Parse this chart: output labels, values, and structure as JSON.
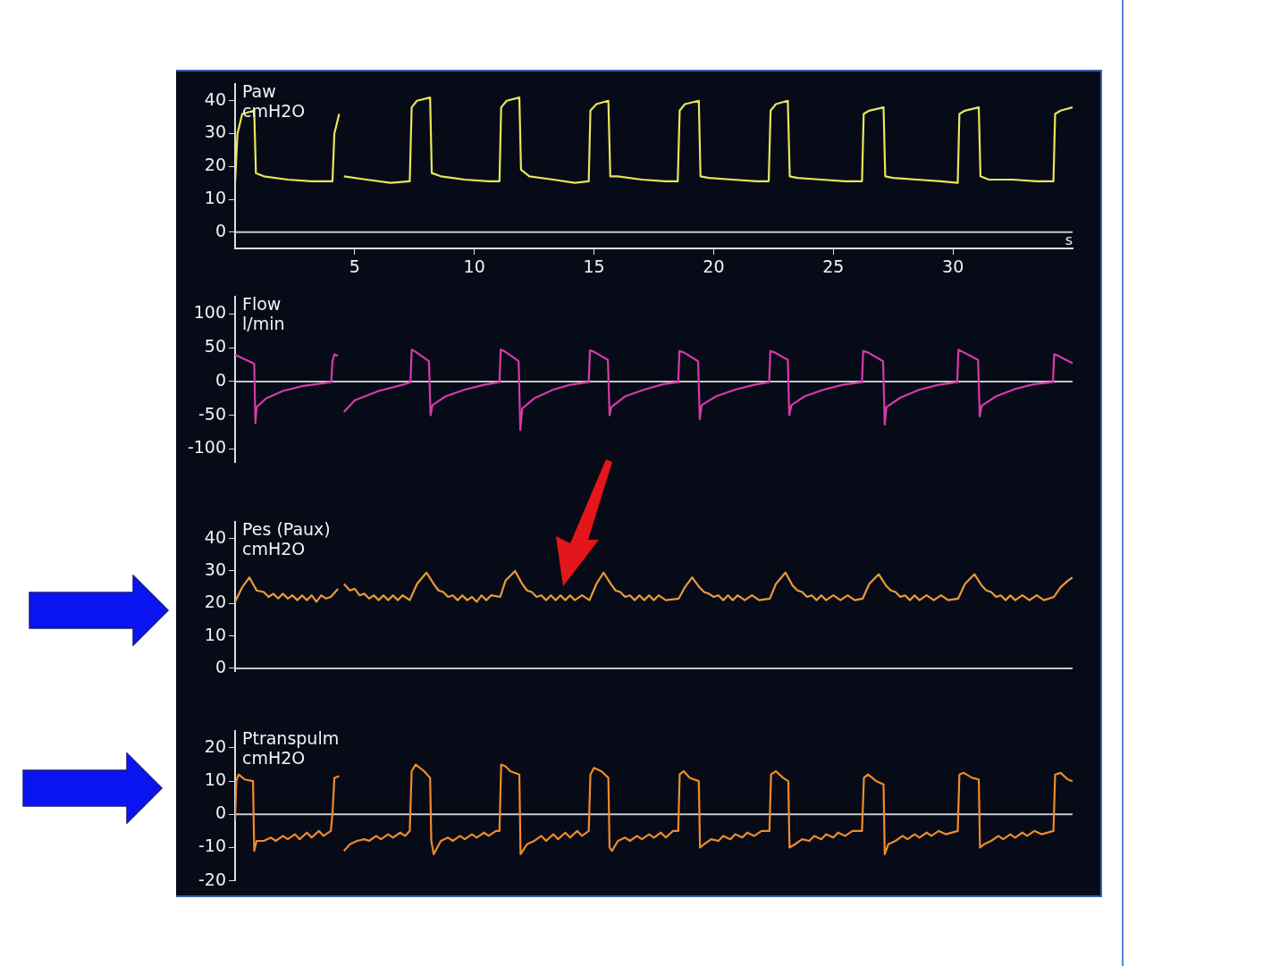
{
  "chart_data": [
    {
      "type": "line",
      "title": "Paw",
      "ylabel": "cmH2O",
      "xlabel": "s",
      "xlim": [
        0,
        35
      ],
      "xticks": [
        5,
        10,
        15,
        20,
        25,
        30
      ],
      "ylim": [
        -5,
        45
      ],
      "yticks": [
        0,
        10,
        20,
        30,
        40
      ],
      "ref_lines": [
        {
          "axis": "y",
          "value": 0,
          "color": "#c8c8c8"
        }
      ],
      "legend": false,
      "series": [
        {
          "color": "#e8e65a",
          "x": [
            0,
            0.1,
            0.3,
            0.8,
            0.87,
            1.2,
            2.2,
            3.2,
            4.0,
            4.07,
            4.15,
            4.35,
            4.45,
            4.55,
            5.5,
            6.5,
            7.3,
            7.38,
            7.6,
            8.15,
            8.22,
            8.6,
            9.6,
            10.6,
            11.05,
            11.12,
            11.35,
            11.88,
            11.95,
            12.3,
            13.3,
            14.2,
            14.78,
            14.85,
            15.1,
            15.6,
            15.68,
            16.0,
            17.0,
            18.0,
            18.5,
            18.58,
            18.8,
            19.38,
            19.45,
            19.8,
            20.8,
            21.8,
            22.3,
            22.38,
            22.6,
            23.1,
            23.18,
            23.5,
            24.5,
            25.5,
            26.2,
            26.27,
            26.5,
            27.1,
            27.17,
            27.5,
            28.5,
            29.5,
            30.2,
            30.27,
            30.5,
            31.08,
            31.15,
            31.5,
            32.5,
            33.5,
            34.2,
            34.27,
            34.5,
            35
          ],
          "values": [
            15,
            30,
            36,
            37,
            18,
            17,
            16,
            15.5,
            15.5,
            15.5,
            30,
            36,
            null,
            17,
            16,
            15,
            15.5,
            38,
            40,
            41,
            18,
            17,
            16,
            15.5,
            15.5,
            38,
            40,
            41,
            19,
            17,
            16,
            15,
            15.5,
            37,
            39,
            40,
            17,
            17,
            16,
            15.5,
            15.5,
            37,
            39,
            40,
            17,
            16.5,
            16,
            15.5,
            15.5,
            37,
            39,
            40,
            17,
            16.5,
            16,
            15.5,
            15.5,
            36,
            37,
            38,
            17,
            16.5,
            16,
            15.5,
            15,
            36,
            37,
            38,
            17,
            16,
            16,
            15.5,
            15.5,
            36,
            37,
            38
          ]
        }
      ]
    },
    {
      "type": "line",
      "title": "Flow",
      "ylabel": "l/min",
      "xlim": [
        0,
        35
      ],
      "xticks": [
        5,
        10,
        15,
        20,
        25,
        30
      ],
      "ylim": [
        -120,
        125
      ],
      "yticks": [
        -100,
        -50,
        0,
        50,
        100
      ],
      "tick_labels": "y",
      "ref_lines": [
        {
          "axis": "y",
          "value": 0,
          "color": "#c8c8c8"
        }
      ],
      "legend": false,
      "series": [
        {
          "color": "#d63aa8",
          "x": [
            0,
            0.1,
            0.7,
            0.8,
            0.85,
            0.9,
            1.3,
            2.0,
            2.8,
            3.6,
            4.02,
            4.07,
            4.15,
            4.3,
            4.45,
            4.55,
            5.0,
            6.0,
            7.0,
            7.33,
            7.38,
            7.5,
            8.1,
            8.17,
            8.25,
            8.8,
            9.6,
            10.4,
            11.05,
            11.1,
            11.25,
            11.85,
            11.92,
            12.0,
            12.5,
            13.3,
            14.0,
            14.78,
            14.83,
            15.0,
            15.58,
            15.65,
            15.72,
            16.3,
            17.1,
            17.9,
            18.52,
            18.57,
            18.75,
            19.35,
            19.42,
            19.5,
            20.1,
            20.9,
            21.7,
            22.32,
            22.37,
            22.55,
            23.1,
            23.16,
            23.25,
            23.8,
            24.6,
            25.4,
            26.2,
            26.25,
            26.45,
            27.08,
            27.15,
            27.22,
            27.8,
            28.6,
            29.4,
            30.18,
            30.23,
            30.4,
            31.05,
            31.12,
            31.2,
            31.8,
            32.6,
            33.4,
            34.18,
            34.23,
            34.4,
            35
          ],
          "values": [
            40,
            38,
            28,
            26,
            -62,
            -38,
            -25,
            -14,
            -7,
            -3,
            -1,
            30,
            40,
            38,
            null,
            -45,
            -28,
            -14,
            -5,
            -1,
            47,
            45,
            30,
            -50,
            -35,
            -22,
            -12,
            -5,
            -1,
            47,
            45,
            30,
            -72,
            -40,
            -25,
            -12,
            -5,
            -1,
            46,
            44,
            32,
            -50,
            -38,
            -22,
            -12,
            -4,
            -1,
            45,
            43,
            30,
            -56,
            -35,
            -22,
            -12,
            -5,
            -1,
            45,
            43,
            32,
            -50,
            -35,
            -22,
            -12,
            -5,
            -1,
            45,
            43,
            30,
            -64,
            -38,
            -24,
            -12,
            -5,
            -1,
            47,
            44,
            32,
            -52,
            -36,
            -22,
            -11,
            -4,
            -1,
            40,
            38,
            27
          ]
        }
      ]
    },
    {
      "type": "line",
      "title": "Pes (Paux)",
      "ylabel": "cmH2O",
      "xlim": [
        0,
        35
      ],
      "xticks": [
        5,
        10,
        15,
        20,
        25,
        30
      ],
      "ylim": [
        -1,
        45
      ],
      "yticks": [
        0,
        10,
        20,
        30,
        40
      ],
      "tick_labels": "y",
      "ref_lines": [
        {
          "axis": "y",
          "value": 0,
          "color": "#c8c8c8"
        }
      ],
      "legend": false,
      "series": [
        {
          "color": "#e89a3a",
          "x": [
            0,
            0.3,
            0.6,
            0.9,
            1.2,
            1.4,
            1.6,
            1.8,
            2.0,
            2.2,
            2.4,
            2.6,
            2.8,
            3.0,
            3.2,
            3.4,
            3.6,
            3.8,
            4.0,
            4.3,
            4.45,
            4.55,
            4.8,
            5.0,
            5.2,
            5.4,
            5.6,
            5.8,
            6.0,
            6.2,
            6.4,
            6.6,
            6.8,
            7.0,
            7.3,
            7.6,
            8.0,
            8.3,
            8.5,
            8.7,
            8.9,
            9.1,
            9.3,
            9.5,
            9.7,
            9.9,
            10.1,
            10.3,
            10.5,
            10.7,
            11.08,
            11.3,
            11.7,
            12.0,
            12.2,
            12.4,
            12.6,
            12.8,
            13.0,
            13.2,
            13.4,
            13.6,
            13.8,
            14.0,
            14.2,
            14.5,
            14.81,
            15.1,
            15.4,
            15.7,
            15.9,
            16.1,
            16.3,
            16.5,
            16.7,
            16.9,
            17.1,
            17.3,
            17.5,
            17.7,
            18.0,
            18.54,
            18.8,
            19.1,
            19.4,
            19.6,
            19.8,
            20.0,
            20.2,
            20.4,
            20.6,
            20.8,
            21.0,
            21.3,
            21.6,
            21.9,
            22.35,
            22.6,
            23.0,
            23.3,
            23.5,
            23.7,
            23.9,
            24.1,
            24.3,
            24.5,
            24.7,
            25.0,
            25.3,
            25.6,
            25.9,
            26.23,
            26.5,
            26.9,
            27.2,
            27.4,
            27.6,
            27.8,
            28.0,
            28.2,
            28.4,
            28.6,
            28.9,
            29.2,
            29.5,
            29.8,
            30.22,
            30.5,
            30.9,
            31.2,
            31.4,
            31.6,
            31.8,
            32.0,
            32.2,
            32.4,
            32.6,
            32.9,
            33.2,
            33.5,
            33.8,
            34.22,
            34.5,
            34.8,
            35
          ],
          "values": [
            20.5,
            25,
            28,
            24,
            23.5,
            22,
            23,
            21.5,
            23,
            21.5,
            22.5,
            21,
            22.5,
            21,
            22.5,
            20.5,
            22.5,
            21.5,
            22,
            24.5,
            null,
            26,
            24,
            24.5,
            22.5,
            23,
            21.5,
            22.5,
            21,
            22.5,
            21,
            22.5,
            21,
            22.5,
            21,
            26,
            29.5,
            26,
            24,
            23.5,
            22,
            22.5,
            21,
            22.5,
            21,
            22,
            20.5,
            22.5,
            21,
            22.5,
            22,
            27,
            30,
            26,
            24,
            23.5,
            22,
            22.5,
            21,
            22.5,
            21,
            22.5,
            21,
            22.5,
            21,
            22.5,
            21,
            26,
            29.5,
            26,
            24,
            23.5,
            22,
            22.5,
            21,
            22.5,
            21,
            22.5,
            21,
            22.5,
            21,
            21.5,
            25,
            28,
            25,
            23.5,
            23,
            22,
            22.5,
            21,
            22.5,
            21,
            22.5,
            21,
            22.5,
            21,
            21.5,
            26,
            29.5,
            25.5,
            24,
            23.5,
            22,
            22.5,
            21,
            22.5,
            21,
            22.5,
            21,
            22.5,
            21,
            21.5,
            26,
            29,
            25.5,
            24,
            23.5,
            22,
            22.5,
            21,
            22.5,
            21,
            22.5,
            21,
            22.5,
            21,
            21.5,
            26,
            29,
            25.5,
            24,
            23.5,
            22,
            22.5,
            21,
            22.5,
            21,
            22.5,
            21,
            22.5,
            21,
            22,
            25,
            27,
            28
          ]
        }
      ]
    },
    {
      "type": "line",
      "title": "Ptranspulm",
      "ylabel": "cmH2O",
      "xlim": [
        0,
        35
      ],
      "xticks": [
        5,
        10,
        15,
        20,
        25,
        30
      ],
      "ylim": [
        -20,
        25
      ],
      "yticks": [
        -20,
        -10,
        0,
        10,
        20
      ],
      "tick_labels": "y",
      "ref_lines": [
        {
          "axis": "y",
          "value": 0,
          "color": "#c8c8c8"
        }
      ],
      "legend": false,
      "series": [
        {
          "color": "#f08a2a",
          "x": [
            0,
            0.05,
            0.15,
            0.4,
            0.75,
            0.8,
            0.9,
            1.2,
            1.5,
            1.7,
            2.0,
            2.2,
            2.5,
            2.7,
            3.0,
            3.2,
            3.5,
            3.7,
            4.0,
            4.07,
            4.15,
            4.35,
            4.45,
            4.55,
            4.8,
            5.1,
            5.4,
            5.6,
            5.9,
            6.1,
            6.4,
            6.6,
            6.9,
            7.1,
            7.3,
            7.38,
            7.55,
            7.9,
            8.15,
            8.2,
            8.3,
            8.6,
            8.9,
            9.1,
            9.4,
            9.6,
            9.9,
            10.1,
            10.4,
            10.6,
            10.9,
            11.05,
            11.12,
            11.3,
            11.5,
            11.88,
            11.93,
            12.2,
            12.5,
            12.8,
            13.0,
            13.3,
            13.5,
            13.8,
            14.0,
            14.3,
            14.5,
            14.78,
            14.85,
            15.0,
            15.3,
            15.6,
            15.65,
            15.75,
            16.0,
            16.3,
            16.5,
            16.8,
            17.0,
            17.3,
            17.5,
            17.8,
            18.0,
            18.3,
            18.52,
            18.58,
            18.75,
            19.0,
            19.38,
            19.43,
            19.6,
            19.9,
            20.2,
            20.4,
            20.7,
            20.9,
            21.2,
            21.4,
            21.7,
            22.0,
            22.33,
            22.4,
            22.6,
            22.9,
            23.12,
            23.17,
            23.4,
            23.7,
            24.0,
            24.2,
            24.5,
            24.7,
            25.0,
            25.2,
            25.5,
            25.8,
            26.2,
            26.28,
            26.45,
            26.8,
            27.1,
            27.15,
            27.3,
            27.6,
            27.9,
            28.1,
            28.4,
            28.6,
            28.9,
            29.1,
            29.4,
            29.7,
            30.2,
            30.27,
            30.45,
            30.8,
            31.08,
            31.13,
            31.3,
            31.6,
            31.9,
            32.1,
            32.4,
            32.6,
            32.9,
            33.1,
            33.4,
            33.7,
            34.2,
            34.27,
            34.5,
            34.8,
            35
          ],
          "values": [
            -2,
            10,
            12,
            10.5,
            10,
            -11,
            -8,
            -8,
            -7,
            -8,
            -6.5,
            -7.5,
            -6,
            -7.5,
            -5.5,
            -7,
            -5,
            -6.5,
            -5,
            0,
            11,
            11.5,
            null,
            -11,
            -9,
            -8,
            -7.5,
            -8,
            -6.5,
            -7.5,
            -6,
            -7,
            -5.5,
            -6.5,
            -5,
            13,
            15,
            13,
            11,
            -8,
            -12,
            -8,
            -7,
            -8,
            -6.5,
            -7.5,
            -6,
            -7,
            -5.5,
            -6.5,
            -5,
            -5,
            15,
            14.5,
            13,
            12,
            -12,
            -9,
            -8,
            -6.5,
            -8,
            -6,
            -7.5,
            -5.5,
            -7,
            -5,
            -6.5,
            -5,
            12,
            14,
            13,
            11,
            -10,
            -11,
            -8,
            -7,
            -8,
            -6.5,
            -7.5,
            -6,
            -7,
            -5.5,
            -7,
            -5,
            -5,
            12,
            13,
            11,
            10,
            -10,
            -9,
            -7.5,
            -8,
            -6.5,
            -7.5,
            -6,
            -7,
            -5.5,
            -6.5,
            -5,
            -5,
            12,
            13,
            11,
            10,
            -10,
            -9,
            -7.5,
            -8,
            -6.5,
            -7.5,
            -6,
            -7,
            -5.5,
            -6.5,
            -5,
            -5,
            11,
            12,
            10,
            9,
            -12,
            -9,
            -8,
            -6.5,
            -7.5,
            -6,
            -7,
            -5.5,
            -6.5,
            -5,
            -6,
            -5,
            12,
            12.5,
            11,
            10.5,
            -10,
            -9,
            -8,
            -6.5,
            -7.5,
            -6,
            -7,
            -5.5,
            -6.5,
            -5,
            -6,
            -5,
            12,
            12.5,
            10.5,
            10
          ]
        }
      ]
    }
  ]
}
